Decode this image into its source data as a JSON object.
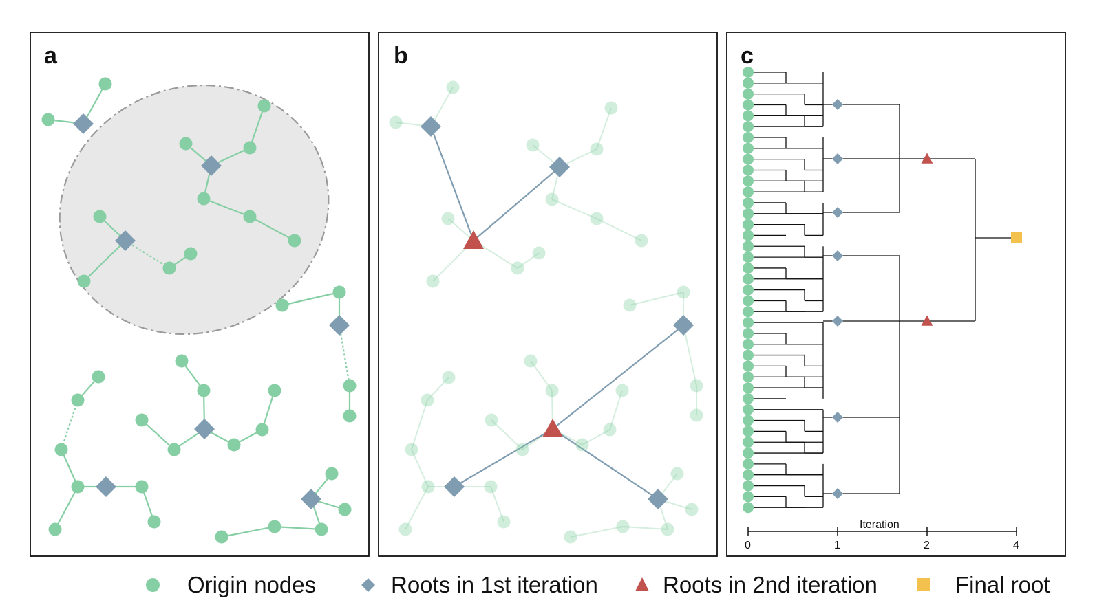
{
  "panels": {
    "a": {
      "label": "a"
    },
    "b": {
      "label": "b"
    },
    "c": {
      "label": "c",
      "axis_label": "Iteration",
      "ticks": [
        "0",
        "1",
        "2",
        "4"
      ]
    }
  },
  "legend": {
    "origin": {
      "label": "Origin nodes",
      "icon": "green-circle-icon",
      "color": "#86cfa4"
    },
    "first": {
      "label": "Roots in 1st iteration",
      "icon": "blue-diamond-icon",
      "color": "#7f9cb0"
    },
    "second": {
      "label": "Roots in 2nd iteration",
      "icon": "red-triangle-icon",
      "color": "#c1524d"
    },
    "final": {
      "label": "Final root",
      "icon": "yellow-square-icon",
      "color": "#f2c14e"
    }
  },
  "colors": {
    "origin_node": "#86cfa4",
    "first_root": "#7f9cb0",
    "second_root": "#c1524d",
    "final_root": "#f2c14e",
    "cluster_fill": "#e8e8e8",
    "cluster_stroke": "#9a9a9a"
  }
}
